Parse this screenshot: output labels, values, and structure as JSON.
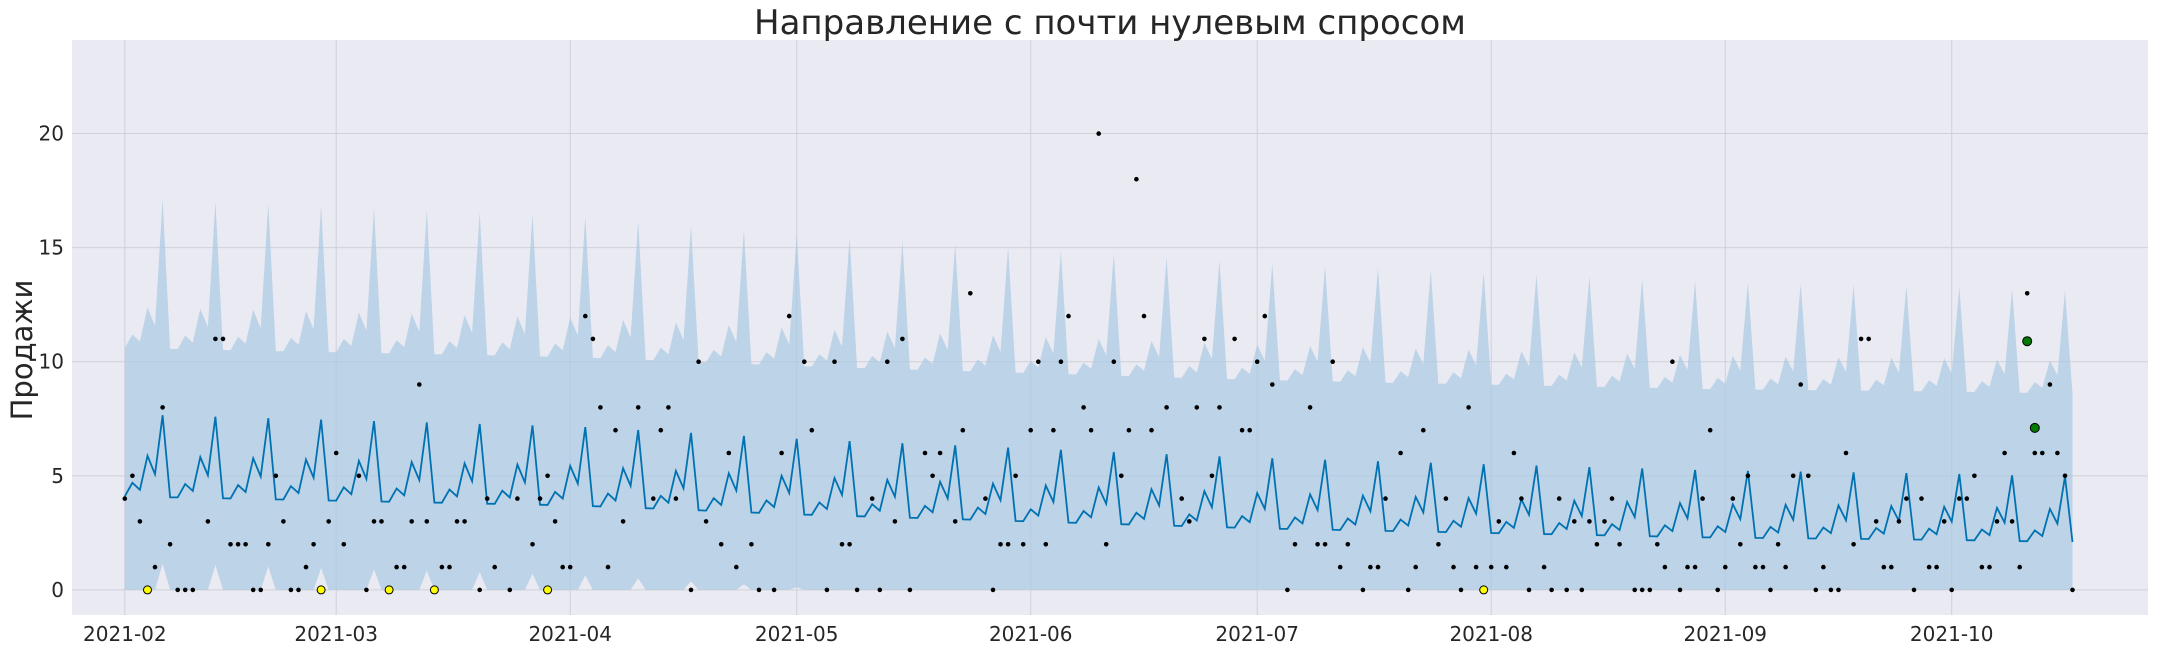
{
  "chart_data": {
    "type": "line",
    "title": "Направление с почти нулевым спросом",
    "xlabel": "",
    "ylabel": "Продажи",
    "xlim": [
      "2021-01-25",
      "2021-10-27"
    ],
    "ylim": [
      -1.1,
      24.1
    ],
    "grid": true,
    "legend": "none",
    "x_ticks": [
      "2021-02",
      "2021-03",
      "2021-04",
      "2021-05",
      "2021-06",
      "2021-07",
      "2021-08",
      "2021-09",
      "2021-10"
    ],
    "y_ticks": [
      0,
      5,
      10,
      15,
      20
    ],
    "colors": {
      "forecast_line": "#0072b2",
      "uncertainty_band": "#a9c9e2",
      "actual_points": "#000000",
      "low_points": "#ffff00",
      "high_points": "#007a00",
      "plot_background": "#eaeaf2"
    },
    "series": [
      {
        "kind": "forecast",
        "start_date": "2021-02-01",
        "end_date": "2021-10-17",
        "weekly_profile": [
          0.0,
          0.6,
          0.3,
          1.8,
          1.0,
          3.6,
          0.0
        ],
        "trend": [
          [
            0,
            4.4
          ],
          [
            30,
            4.2
          ],
          [
            60,
            4.0
          ],
          [
            90,
            3.6
          ],
          [
            120,
            3.3
          ],
          [
            150,
            3.0
          ],
          [
            180,
            2.8
          ],
          [
            210,
            2.6
          ],
          [
            240,
            2.5
          ],
          [
            258,
            2.4
          ]
        ]
      },
      {
        "kind": "actual_points",
        "points": [
          [
            "2021-02-01",
            4
          ],
          [
            "2021-02-02",
            5
          ],
          [
            "2021-02-03",
            3
          ],
          [
            "2021-02-05",
            1
          ],
          [
            "2021-02-06",
            8
          ],
          [
            "2021-02-07",
            2
          ],
          [
            "2021-02-08",
            0
          ],
          [
            "2021-02-09",
            0
          ],
          [
            "2021-02-10",
            0
          ],
          [
            "2021-02-12",
            3
          ],
          [
            "2021-02-13",
            11
          ],
          [
            "2021-02-14",
            11
          ],
          [
            "2021-02-15",
            2
          ],
          [
            "2021-02-16",
            2
          ],
          [
            "2021-02-17",
            2
          ],
          [
            "2021-02-18",
            0
          ],
          [
            "2021-02-19",
            0
          ],
          [
            "2021-02-20",
            2
          ],
          [
            "2021-02-21",
            5
          ],
          [
            "2021-02-22",
            3
          ],
          [
            "2021-02-23",
            0
          ],
          [
            "2021-02-24",
            0
          ],
          [
            "2021-02-25",
            1
          ],
          [
            "2021-02-26",
            2
          ],
          [
            "2021-02-28",
            3
          ],
          [
            "2021-03-01",
            6
          ],
          [
            "2021-03-02",
            2
          ],
          [
            "2021-03-04",
            5
          ],
          [
            "2021-03-05",
            0
          ],
          [
            "2021-03-06",
            3
          ],
          [
            "2021-03-07",
            3
          ],
          [
            "2021-03-09",
            1
          ],
          [
            "2021-03-10",
            1
          ],
          [
            "2021-03-11",
            3
          ],
          [
            "2021-03-12",
            9
          ],
          [
            "2021-03-13",
            3
          ],
          [
            "2021-03-15",
            1
          ],
          [
            "2021-03-16",
            1
          ],
          [
            "2021-03-17",
            3
          ],
          [
            "2021-03-18",
            3
          ],
          [
            "2021-03-20",
            0
          ],
          [
            "2021-03-21",
            4
          ],
          [
            "2021-03-22",
            1
          ],
          [
            "2021-03-24",
            0
          ],
          [
            "2021-03-25",
            4
          ],
          [
            "2021-03-27",
            2
          ],
          [
            "2021-03-28",
            4
          ],
          [
            "2021-03-29",
            5
          ],
          [
            "2021-03-30",
            3
          ],
          [
            "2021-03-31",
            1
          ],
          [
            "2021-04-01",
            1
          ],
          [
            "2021-04-03",
            12
          ],
          [
            "2021-04-04",
            11
          ],
          [
            "2021-04-05",
            8
          ],
          [
            "2021-04-06",
            1
          ],
          [
            "2021-04-07",
            7
          ],
          [
            "2021-04-08",
            3
          ],
          [
            "2021-04-10",
            8
          ],
          [
            "2021-04-12",
            4
          ],
          [
            "2021-04-13",
            7
          ],
          [
            "2021-04-14",
            8
          ],
          [
            "2021-04-15",
            4
          ],
          [
            "2021-04-17",
            0
          ],
          [
            "2021-04-18",
            10
          ],
          [
            "2021-04-19",
            3
          ],
          [
            "2021-04-21",
            2
          ],
          [
            "2021-04-22",
            6
          ],
          [
            "2021-04-23",
            1
          ],
          [
            "2021-04-25",
            2
          ],
          [
            "2021-04-26",
            0
          ],
          [
            "2021-04-28",
            0
          ],
          [
            "2021-04-29",
            6
          ],
          [
            "2021-04-30",
            12
          ],
          [
            "2021-05-02",
            10
          ],
          [
            "2021-05-03",
            7
          ],
          [
            "2021-05-05",
            0
          ],
          [
            "2021-05-06",
            10
          ],
          [
            "2021-05-07",
            2
          ],
          [
            "2021-05-08",
            2
          ],
          [
            "2021-05-09",
            0
          ],
          [
            "2021-05-11",
            4
          ],
          [
            "2021-05-12",
            0
          ],
          [
            "2021-05-13",
            10
          ],
          [
            "2021-05-14",
            3
          ],
          [
            "2021-05-15",
            11
          ],
          [
            "2021-05-16",
            0
          ],
          [
            "2021-05-18",
            6
          ],
          [
            "2021-05-19",
            5
          ],
          [
            "2021-05-20",
            6
          ],
          [
            "2021-05-22",
            3
          ],
          [
            "2021-05-23",
            7
          ],
          [
            "2021-05-24",
            13
          ],
          [
            "2021-05-26",
            4
          ],
          [
            "2021-05-27",
            0
          ],
          [
            "2021-05-28",
            2
          ],
          [
            "2021-05-29",
            2
          ],
          [
            "2021-05-30",
            5
          ],
          [
            "2021-05-31",
            2
          ],
          [
            "2021-06-01",
            7
          ],
          [
            "2021-06-02",
            10
          ],
          [
            "2021-06-03",
            2
          ],
          [
            "2021-06-04",
            7
          ],
          [
            "2021-06-05",
            10
          ],
          [
            "2021-06-06",
            12
          ],
          [
            "2021-06-08",
            8
          ],
          [
            "2021-06-09",
            7
          ],
          [
            "2021-06-10",
            20
          ],
          [
            "2021-06-11",
            2
          ],
          [
            "2021-06-12",
            10
          ],
          [
            "2021-06-13",
            5
          ],
          [
            "2021-06-14",
            7
          ],
          [
            "2021-06-15",
            18
          ],
          [
            "2021-06-16",
            12
          ],
          [
            "2021-06-17",
            7
          ],
          [
            "2021-06-19",
            8
          ],
          [
            "2021-06-21",
            4
          ],
          [
            "2021-06-22",
            3
          ],
          [
            "2021-06-23",
            8
          ],
          [
            "2021-06-24",
            11
          ],
          [
            "2021-06-25",
            5
          ],
          [
            "2021-06-26",
            8
          ],
          [
            "2021-06-28",
            11
          ],
          [
            "2021-06-29",
            7
          ],
          [
            "2021-06-30",
            7
          ],
          [
            "2021-07-01",
            10
          ],
          [
            "2021-07-02",
            12
          ],
          [
            "2021-07-03",
            9
          ],
          [
            "2021-07-05",
            0
          ],
          [
            "2021-07-06",
            2
          ],
          [
            "2021-07-08",
            8
          ],
          [
            "2021-07-09",
            2
          ],
          [
            "2021-07-10",
            2
          ],
          [
            "2021-07-11",
            10
          ],
          [
            "2021-07-12",
            1
          ],
          [
            "2021-07-13",
            2
          ],
          [
            "2021-07-15",
            0
          ],
          [
            "2021-07-16",
            1
          ],
          [
            "2021-07-17",
            1
          ],
          [
            "2021-07-18",
            4
          ],
          [
            "2021-07-20",
            6
          ],
          [
            "2021-07-21",
            0
          ],
          [
            "2021-07-22",
            1
          ],
          [
            "2021-07-23",
            7
          ],
          [
            "2021-07-25",
            2
          ],
          [
            "2021-07-26",
            4
          ],
          [
            "2021-07-27",
            1
          ],
          [
            "2021-07-28",
            0
          ],
          [
            "2021-07-29",
            8
          ],
          [
            "2021-07-30",
            1
          ],
          [
            "2021-07-31",
            0
          ],
          [
            "2021-08-01",
            1
          ],
          [
            "2021-08-02",
            3
          ],
          [
            "2021-08-03",
            1
          ],
          [
            "2021-08-04",
            6
          ],
          [
            "2021-08-05",
            4
          ],
          [
            "2021-08-06",
            0
          ],
          [
            "2021-08-08",
            1
          ],
          [
            "2021-08-09",
            0
          ],
          [
            "2021-08-10",
            4
          ],
          [
            "2021-08-11",
            0
          ],
          [
            "2021-08-12",
            3
          ],
          [
            "2021-08-13",
            0
          ],
          [
            "2021-08-14",
            3
          ],
          [
            "2021-08-15",
            2
          ],
          [
            "2021-08-16",
            3
          ],
          [
            "2021-08-17",
            4
          ],
          [
            "2021-08-18",
            2
          ],
          [
            "2021-08-20",
            0
          ],
          [
            "2021-08-21",
            0
          ],
          [
            "2021-08-22",
            0
          ],
          [
            "2021-08-23",
            2
          ],
          [
            "2021-08-24",
            1
          ],
          [
            "2021-08-25",
            10
          ],
          [
            "2021-08-26",
            0
          ],
          [
            "2021-08-27",
            1
          ],
          [
            "2021-08-28",
            1
          ],
          [
            "2021-08-29",
            4
          ],
          [
            "2021-08-30",
            7
          ],
          [
            "2021-08-31",
            0
          ],
          [
            "2021-09-01",
            1
          ],
          [
            "2021-09-02",
            4
          ],
          [
            "2021-09-03",
            2
          ],
          [
            "2021-09-04",
            5
          ],
          [
            "2021-09-05",
            1
          ],
          [
            "2021-09-06",
            1
          ],
          [
            "2021-09-07",
            0
          ],
          [
            "2021-09-08",
            2
          ],
          [
            "2021-09-09",
            1
          ],
          [
            "2021-09-10",
            5
          ],
          [
            "2021-09-11",
            9
          ],
          [
            "2021-09-12",
            5
          ],
          [
            "2021-09-13",
            0
          ],
          [
            "2021-09-14",
            1
          ],
          [
            "2021-09-15",
            0
          ],
          [
            "2021-09-16",
            0
          ],
          [
            "2021-09-17",
            6
          ],
          [
            "2021-09-18",
            2
          ],
          [
            "2021-09-19",
            11
          ],
          [
            "2021-09-20",
            11
          ],
          [
            "2021-09-21",
            3
          ],
          [
            "2021-09-22",
            1
          ],
          [
            "2021-09-23",
            1
          ],
          [
            "2021-09-24",
            3
          ],
          [
            "2021-09-25",
            4
          ],
          [
            "2021-09-26",
            0
          ],
          [
            "2021-09-27",
            4
          ],
          [
            "2021-09-28",
            1
          ],
          [
            "2021-09-29",
            1
          ],
          [
            "2021-09-30",
            3
          ],
          [
            "2021-10-01",
            0
          ],
          [
            "2021-10-02",
            4
          ],
          [
            "2021-10-03",
            4
          ],
          [
            "2021-10-04",
            5
          ],
          [
            "2021-10-05",
            1
          ],
          [
            "2021-10-06",
            1
          ],
          [
            "2021-10-07",
            3
          ],
          [
            "2021-10-08",
            6
          ],
          [
            "2021-10-09",
            3
          ],
          [
            "2021-10-10",
            1
          ],
          [
            "2021-10-11",
            13
          ],
          [
            "2021-10-12",
            6
          ],
          [
            "2021-10-13",
            6
          ],
          [
            "2021-10-14",
            9
          ],
          [
            "2021-10-15",
            6
          ],
          [
            "2021-10-16",
            5
          ],
          [
            "2021-10-17",
            0
          ]
        ]
      },
      {
        "kind": "low_points",
        "points": [
          [
            "2021-02-04",
            0
          ],
          [
            "2021-02-27",
            0
          ],
          [
            "2021-03-08",
            0
          ],
          [
            "2021-03-14",
            0
          ],
          [
            "2021-03-29",
            0
          ],
          [
            "2021-07-31",
            0
          ]
        ]
      },
      {
        "kind": "high_points",
        "points": [
          [
            "2021-10-11",
            10.9
          ],
          [
            "2021-10-12",
            7.1
          ]
        ]
      }
    ]
  }
}
